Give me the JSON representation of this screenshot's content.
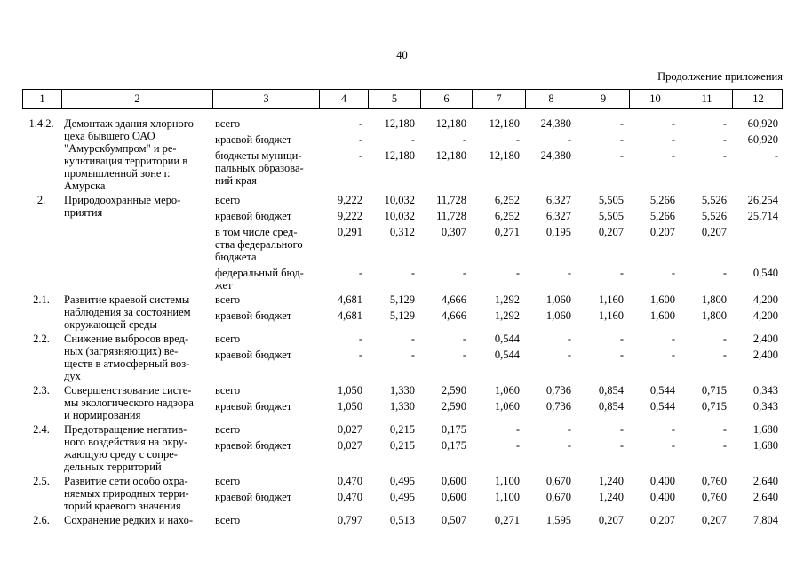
{
  "page": {
    "number": "40",
    "continuation": "Продолжение приложения"
  },
  "table": {
    "column_headers": [
      "1",
      "2",
      "3",
      "4",
      "5",
      "6",
      "7",
      "8",
      "9",
      "10",
      "11",
      "12"
    ],
    "groups": [
      {
        "num": "1.4.2.",
        "title_lines": [
          "Демонтаж здания хлорного",
          "цеха бывшего ОАО",
          "\"Амурскбумпром\" и ре-",
          "культивация территории в",
          "промышленной зоне г.",
          "Амурска"
        ],
        "rows": [
          {
            "label_lines": [
              "всего"
            ],
            "values": [
              "-",
              "12,180",
              "12,180",
              "12,180",
              "24,380",
              "-",
              "-",
              "-",
              "60,920"
            ]
          },
          {
            "label_lines": [
              "краевой бюджет"
            ],
            "values": [
              "-",
              "-",
              "-",
              "-",
              "-",
              "-",
              "-",
              "-",
              "60,920"
            ]
          },
          {
            "label_lines": [
              "бюджеты муници-",
              "пальных образова-",
              "ний края"
            ],
            "values": [
              "-",
              "12,180",
              "12,180",
              "12,180",
              "24,380",
              "-",
              "-",
              "-",
              "-"
            ]
          }
        ]
      },
      {
        "num": "2.",
        "title_lines": [
          "Природоохранные меро-",
          "приятия"
        ],
        "rows": [
          {
            "label_lines": [
              "всего"
            ],
            "values": [
              "9,222",
              "10,032",
              "11,728",
              "6,252",
              "6,327",
              "5,505",
              "5,266",
              "5,526",
              "26,254"
            ]
          },
          {
            "label_lines": [
              "краевой бюджет"
            ],
            "values": [
              "9,222",
              "10,032",
              "11,728",
              "6,252",
              "6,327",
              "5,505",
              "5,266",
              "5,526",
              "25,714"
            ]
          },
          {
            "label_lines": [
              "в том числе сред-",
              "ства федерального",
              "бюджета"
            ],
            "values": [
              "0,291",
              "0,312",
              "0,307",
              "0,271",
              "0,195",
              "0,207",
              "0,207",
              "0,207",
              ""
            ]
          },
          {
            "label_lines": [
              "федеральный бюд-",
              "жет"
            ],
            "values": [
              "-",
              "-",
              "-",
              "-",
              "-",
              "-",
              "-",
              "-",
              "0,540"
            ]
          }
        ]
      },
      {
        "num": "2.1.",
        "title_lines": [
          "Развитие краевой системы",
          "наблюдения за состоянием",
          "окружающей среды"
        ],
        "rows": [
          {
            "label_lines": [
              "всего"
            ],
            "values": [
              "4,681",
              "5,129",
              "4,666",
              "1,292",
              "1,060",
              "1,160",
              "1,600",
              "1,800",
              "4,200"
            ]
          },
          {
            "label_lines": [
              "краевой бюджет"
            ],
            "values": [
              "4,681",
              "5,129",
              "4,666",
              "1,292",
              "1,060",
              "1,160",
              "1,600",
              "1,800",
              "4,200"
            ]
          }
        ]
      },
      {
        "num": "2.2.",
        "title_lines": [
          "Снижение выбросов вред-",
          "ных (загрязняющих) ве-",
          "ществ в атмосферный воз-",
          "дух"
        ],
        "rows": [
          {
            "label_lines": [
              "всего"
            ],
            "values": [
              "-",
              "-",
              "-",
              "0,544",
              "-",
              "-",
              "-",
              "-",
              "2,400"
            ]
          },
          {
            "label_lines": [
              "краевой бюджет"
            ],
            "values": [
              "-",
              "-",
              "-",
              "0,544",
              "-",
              "-",
              "-",
              "-",
              "2,400"
            ]
          }
        ]
      },
      {
        "num": "2.3.",
        "title_lines": [
          "Совершенствование систе-",
          "мы экологического надзора",
          "и нормирования"
        ],
        "rows": [
          {
            "label_lines": [
              "всего"
            ],
            "values": [
              "1,050",
              "1,330",
              "2,590",
              "1,060",
              "0,736",
              "0,854",
              "0,544",
              "0,715",
              "0,343"
            ]
          },
          {
            "label_lines": [
              "краевой бюджет"
            ],
            "values": [
              "1,050",
              "1,330",
              "2,590",
              "1,060",
              "0,736",
              "0,854",
              "0,544",
              "0,715",
              "0,343"
            ]
          }
        ]
      },
      {
        "num": "2.4.",
        "title_lines": [
          "Предотвращение негатив-",
          "ного воздействия на окру-",
          "жающую среду с сопре-",
          "дельных территорий"
        ],
        "rows": [
          {
            "label_lines": [
              "всего"
            ],
            "values": [
              "0,027",
              "0,215",
              "0,175",
              "-",
              "-",
              "-",
              "-",
              "-",
              "1,680"
            ]
          },
          {
            "label_lines": [
              "краевой бюджет"
            ],
            "values": [
              "0,027",
              "0,215",
              "0,175",
              "-",
              "-",
              "-",
              "-",
              "-",
              "1,680"
            ]
          }
        ]
      },
      {
        "num": "2.5.",
        "title_lines": [
          "Развитие сети особо охра-",
          "няемых природных терри-",
          "торий краевого значения"
        ],
        "rows": [
          {
            "label_lines": [
              "всего"
            ],
            "values": [
              "0,470",
              "0,495",
              "0,600",
              "1,100",
              "0,670",
              "1,240",
              "0,400",
              "0,760",
              "2,640"
            ]
          },
          {
            "label_lines": [
              "краевой бюджет"
            ],
            "values": [
              "0,470",
              "0,495",
              "0,600",
              "1,100",
              "0,670",
              "1,240",
              "0,400",
              "0,760",
              "2,640"
            ]
          }
        ]
      },
      {
        "num": "2.6.",
        "title_lines": [
          "Сохранение редких и нахо-"
        ],
        "rows": [
          {
            "label_lines": [
              "всего"
            ],
            "values": [
              "0,797",
              "0,513",
              "0,507",
              "0,271",
              "1,595",
              "0,207",
              "0,207",
              "0,207",
              "7,804"
            ]
          }
        ]
      }
    ]
  }
}
